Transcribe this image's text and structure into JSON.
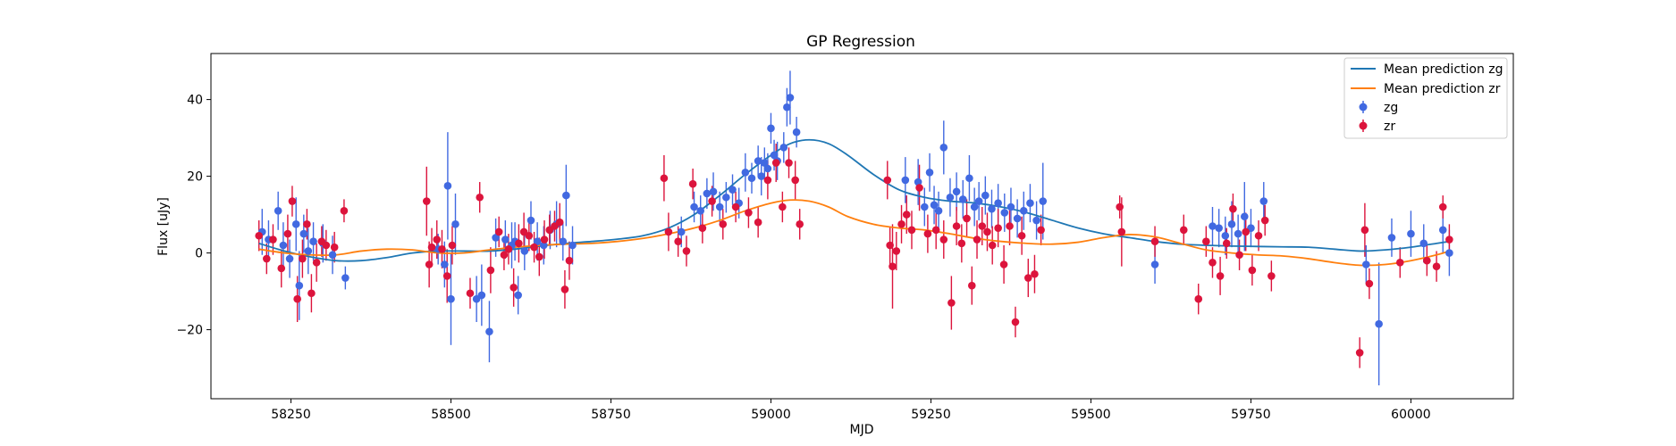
{
  "chart_data": {
    "type": "scatter",
    "title": "GP Regression",
    "xlabel": "MJD",
    "ylabel": "Flux [uJy]",
    "xlim": [
      58125,
      60160
    ],
    "ylim": [
      -38,
      52
    ],
    "xticks": [
      58250,
      58500,
      58750,
      59000,
      59250,
      59500,
      59750,
      60000
    ],
    "yticks": [
      -20,
      0,
      20,
      40
    ],
    "grid": false,
    "legend_placement": "top-right",
    "colors": {
      "zg": "#4169e1",
      "zr": "#dc143c",
      "zg_mean": "#1f77b4",
      "zr_mean": "#ff7f0e"
    },
    "legend": [
      "Mean prediction zg",
      "Mean prediction zr",
      "zg",
      "zr"
    ],
    "mean_lines": [
      {
        "name": "Mean prediction zg",
        "x": [
          58200,
          58240,
          58280,
          58320,
          58360,
          58400,
          58440,
          58480,
          58520,
          58560,
          58600,
          58640,
          58680,
          58720,
          58760,
          58800,
          58840,
          58880,
          58920,
          58960,
          59000,
          59030,
          59060,
          59090,
          59120,
          59160,
          59200,
          59240,
          59280,
          59320,
          59360,
          59400,
          59440,
          59480,
          59520,
          59560,
          59600,
          59640,
          59680,
          59720,
          59760,
          59800,
          59840,
          59880,
          59920,
          59960,
          60000,
          60040,
          60060
        ],
        "y": [
          2.5,
          0.5,
          -1.0,
          -2.0,
          -2.0,
          -1.2,
          0.0,
          0.5,
          0.5,
          0.5,
          1.0,
          1.8,
          2.5,
          3.0,
          3.6,
          4.5,
          6.5,
          10.0,
          15.0,
          20.5,
          25.5,
          28.5,
          29.5,
          28.5,
          25.5,
          20.5,
          16.5,
          14.5,
          13.5,
          13.0,
          12.0,
          10.5,
          8.5,
          6.5,
          5.0,
          4.0,
          3.0,
          2.3,
          2.0,
          1.8,
          1.7,
          1.6,
          1.5,
          1.0,
          0.5,
          0.8,
          1.5,
          2.5,
          3.0
        ]
      },
      {
        "name": "Mean prediction zr",
        "x": [
          58200,
          58240,
          58280,
          58320,
          58360,
          58400,
          58440,
          58480,
          58520,
          58560,
          58600,
          58640,
          58680,
          58720,
          58760,
          58800,
          58840,
          58880,
          58920,
          58960,
          59000,
          59030,
          59060,
          59090,
          59120,
          59160,
          59200,
          59240,
          59280,
          59320,
          59360,
          59400,
          59440,
          59480,
          59520,
          59560,
          59600,
          59640,
          59680,
          59720,
          59760,
          59800,
          59840,
          59880,
          59920,
          59960,
          60000,
          60040,
          60060
        ],
        "y": [
          1.0,
          0.0,
          -0.5,
          -0.5,
          0.5,
          1.0,
          0.8,
          0.0,
          0.0,
          0.8,
          1.5,
          2.0,
          2.3,
          2.5,
          3.0,
          3.8,
          5.0,
          6.5,
          8.5,
          11.0,
          13.0,
          13.8,
          13.5,
          12.0,
          9.5,
          7.5,
          6.5,
          6.0,
          5.0,
          3.8,
          3.0,
          2.5,
          2.3,
          2.8,
          4.0,
          4.8,
          4.2,
          2.5,
          0.8,
          0.0,
          -0.5,
          -0.8,
          -1.5,
          -2.5,
          -3.2,
          -3.0,
          -2.0,
          -0.5,
          0.5
        ]
      }
    ],
    "series": [
      {
        "name": "zg",
        "x": [
          58205,
          58215,
          58230,
          58238,
          58248,
          58258,
          58263,
          58270,
          58277,
          58285,
          58300,
          58315,
          58335,
          58480,
          58490,
          58495,
          58500,
          58507,
          58540,
          58548,
          58560,
          58570,
          58585,
          58595,
          58600,
          58605,
          58615,
          58625,
          58635,
          58645,
          58655,
          58665,
          58675,
          58680,
          58690,
          58860,
          58880,
          58890,
          58900,
          58910,
          58920,
          58930,
          58940,
          58950,
          58960,
          58970,
          58980,
          58985,
          58990,
          58995,
          59000,
          59005,
          59010,
          59020,
          59025,
          59030,
          59040,
          59210,
          59230,
          59240,
          59248,
          59255,
          59262,
          59270,
          59280,
          59290,
          59300,
          59310,
          59318,
          59325,
          59335,
          59345,
          59355,
          59365,
          59375,
          59385,
          59395,
          59405,
          59415,
          59425,
          59600,
          59690,
          59700,
          59710,
          59720,
          59730,
          59740,
          59750,
          59770,
          59930,
          59950,
          59970,
          60000,
          60020,
          60050,
          60060
        ],
        "y": [
          5.5,
          3.5,
          11.0,
          2.0,
          -1.5,
          7.5,
          -8.5,
          5.0,
          0.5,
          3.0,
          2.5,
          -0.5,
          -6.5,
          1.0,
          -3.0,
          17.5,
          -12.0,
          7.5,
          -12.0,
          -11.0,
          -20.5,
          4.0,
          3.5,
          2.0,
          3.0,
          -11.0,
          0.5,
          8.5,
          3.0,
          2.0,
          6.0,
          7.5,
          3.0,
          15.0,
          2.0,
          5.5,
          12.0,
          11.0,
          15.5,
          16.0,
          12.0,
          14.5,
          16.5,
          13.0,
          21.0,
          19.5,
          24.0,
          20.0,
          23.5,
          22.0,
          32.5,
          25.5,
          24.0,
          27.5,
          38.0,
          40.5,
          31.5,
          19.0,
          18.5,
          12.0,
          21.0,
          12.5,
          11.0,
          27.5,
          14.5,
          16.0,
          14.0,
          19.5,
          12.0,
          13.5,
          15.0,
          11.5,
          13.0,
          10.5,
          12.0,
          9.0,
          11.0,
          13.0,
          8.5,
          13.5,
          -3.0,
          7.0,
          6.5,
          4.5,
          7.5,
          5.0,
          9.5,
          6.5,
          13.5,
          -3.0,
          -18.5,
          4.0,
          5.0,
          2.5,
          6.0,
          0.0
        ],
        "err": [
          6,
          5,
          5,
          6,
          5,
          7,
          9,
          5,
          6,
          5,
          5,
          5,
          3,
          4,
          6,
          14,
          12,
          8,
          6,
          8,
          8,
          5,
          5,
          6,
          5,
          5,
          5,
          5,
          5,
          5,
          5,
          6,
          5,
          8,
          5,
          4,
          4,
          4,
          4,
          5,
          4,
          4,
          4,
          4,
          5,
          4,
          4,
          5,
          4,
          4,
          4,
          4,
          5,
          4,
          5,
          7,
          4,
          6,
          6,
          5,
          5,
          5,
          5,
          7,
          5,
          5,
          5,
          6,
          5,
          5,
          5,
          5,
          5,
          5,
          5,
          5,
          5,
          5,
          5,
          10,
          5,
          5,
          5,
          5,
          6,
          5,
          9,
          5,
          5,
          5,
          16,
          5,
          6,
          5,
          6,
          6
        ]
      },
      {
        "name": "zr",
        "x": [
          58200,
          58212,
          58222,
          58235,
          58245,
          58252,
          58260,
          58268,
          58275,
          58282,
          58290,
          58298,
          58305,
          58318,
          58333,
          58462,
          58466,
          58470,
          58478,
          58486,
          58494,
          58502,
          58530,
          58545,
          58562,
          58575,
          58583,
          58590,
          58598,
          58606,
          58614,
          58622,
          58630,
          58638,
          58646,
          58654,
          58662,
          58670,
          58678,
          58685,
          58833,
          58840,
          58855,
          58868,
          58878,
          58893,
          58908,
          58925,
          58945,
          58965,
          58980,
          58995,
          59008,
          59018,
          59028,
          59038,
          59045,
          59182,
          59186,
          59190,
          59196,
          59204,
          59212,
          59220,
          59232,
          59245,
          59258,
          59270,
          59282,
          59290,
          59298,
          59306,
          59314,
          59322,
          59330,
          59338,
          59346,
          59355,
          59364,
          59373,
          59382,
          59392,
          59402,
          59412,
          59422,
          59545,
          59548,
          59600,
          59645,
          59668,
          59680,
          59690,
          59702,
          59712,
          59722,
          59732,
          59742,
          59752,
          59762,
          59772,
          59782,
          59920,
          59928,
          59935,
          59983,
          60025,
          60040,
          60050,
          60060
        ],
        "y": [
          4.5,
          -1.5,
          3.5,
          -4.0,
          5.0,
          13.5,
          -12.0,
          -1.5,
          7.5,
          -10.5,
          -2.5,
          3.0,
          2.0,
          1.5,
          11.0,
          13.5,
          -3.0,
          1.5,
          3.5,
          1.0,
          -6.0,
          2.0,
          -10.5,
          14.5,
          -4.5,
          5.5,
          -0.5,
          1.0,
          -9.0,
          2.5,
          5.5,
          4.5,
          1.5,
          -1.0,
          3.5,
          6.0,
          7.0,
          8.0,
          -9.5,
          -2.0,
          19.5,
          5.5,
          3.0,
          0.5,
          18.0,
          6.5,
          13.5,
          7.5,
          12.0,
          10.5,
          8.0,
          19.0,
          23.5,
          12.0,
          23.5,
          19.0,
          7.5,
          19.0,
          2.0,
          -3.5,
          0.5,
          7.5,
          10.0,
          6.0,
          17.0,
          5.0,
          6.0,
          3.5,
          -13.0,
          7.0,
          2.5,
          9.0,
          -8.5,
          3.5,
          7.0,
          5.5,
          2.0,
          6.5,
          -3.0,
          7.0,
          -18.0,
          4.5,
          -6.5,
          -5.5,
          6.0,
          12.0,
          5.5,
          3.0,
          6.0,
          -12.0,
          3.0,
          -2.5,
          -6.0,
          2.5,
          11.5,
          -0.5,
          5.5,
          -4.5,
          4.5,
          8.5,
          -6.0,
          -26.0,
          6.0,
          -8.0,
          -2.5,
          -2.0,
          -3.5,
          12.0,
          3.5
        ],
        "err": [
          4,
          4,
          4,
          5,
          5,
          4,
          6,
          5,
          4,
          5,
          5,
          4,
          4,
          4,
          3,
          9,
          6,
          5,
          5,
          5,
          7,
          5,
          4,
          4,
          6,
          4,
          4,
          4,
          5,
          5,
          5,
          4,
          4,
          5,
          5,
          4,
          4,
          5,
          5,
          5,
          6,
          5,
          4,
          4,
          4,
          4,
          4,
          4,
          4,
          4,
          4,
          5,
          5,
          4,
          4,
          5,
          4,
          5,
          5,
          11,
          5,
          5,
          5,
          5,
          6,
          5,
          5,
          5,
          7,
          5,
          5,
          5,
          5,
          5,
          5,
          5,
          5,
          5,
          5,
          5,
          4,
          5,
          5,
          5,
          4,
          3,
          9,
          4,
          4,
          4,
          4,
          4,
          5,
          4,
          4,
          4,
          5,
          4,
          4,
          4,
          4,
          4,
          7,
          4,
          4,
          4,
          4,
          3,
          4
        ]
      }
    ]
  }
}
